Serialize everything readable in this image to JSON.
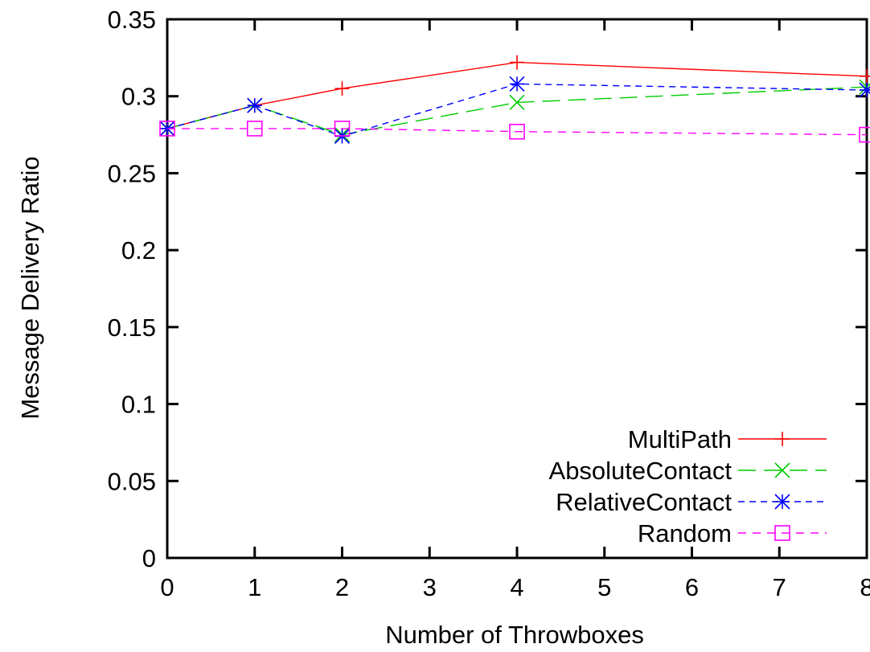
{
  "chart_data": {
    "type": "line",
    "title": "",
    "xlabel": "Number of Throwboxes",
    "ylabel": "Message Delivery Ratio",
    "xlim": [
      0,
      8
    ],
    "ylim": [
      0,
      0.35
    ],
    "xticks": [
      0,
      1,
      2,
      3,
      4,
      5,
      6,
      7,
      8
    ],
    "xtick_labels": [
      "0",
      "1",
      "2",
      "3",
      "4",
      "5",
      "6",
      "7",
      "8"
    ],
    "yticks": [
      0,
      0.05,
      0.1,
      0.15,
      0.2,
      0.25,
      0.3,
      0.35
    ],
    "ytick_labels": [
      "0",
      "0.05",
      "0.1",
      "0.15",
      "0.2",
      "0.25",
      "0.3",
      "0.35"
    ],
    "grid": false,
    "legend_position": "bottom-right",
    "series": [
      {
        "name": "MultiPath",
        "color": "#ff0000",
        "marker": "plus",
        "dash": "solid",
        "x": [
          0,
          1,
          2,
          4,
          8
        ],
        "y": [
          0.279,
          0.294,
          0.305,
          0.322,
          0.313
        ]
      },
      {
        "name": "AbsoluteContact",
        "color": "#00cc00",
        "marker": "cross",
        "dash": "long-dash",
        "x": [
          0,
          1,
          2,
          4,
          8
        ],
        "y": [
          0.279,
          0.294,
          0.275,
          0.296,
          0.306
        ]
      },
      {
        "name": "RelativeContact",
        "color": "#0000ff",
        "marker": "star",
        "dash": "short-dash",
        "x": [
          0,
          1,
          2,
          4,
          8
        ],
        "y": [
          0.279,
          0.294,
          0.274,
          0.308,
          0.304
        ]
      },
      {
        "name": "Random",
        "color": "#ff00ff",
        "marker": "square",
        "dash": "dotted-dash",
        "x": [
          0,
          1,
          2,
          4,
          8
        ],
        "y": [
          0.279,
          0.279,
          0.279,
          0.277,
          0.275
        ]
      }
    ]
  }
}
